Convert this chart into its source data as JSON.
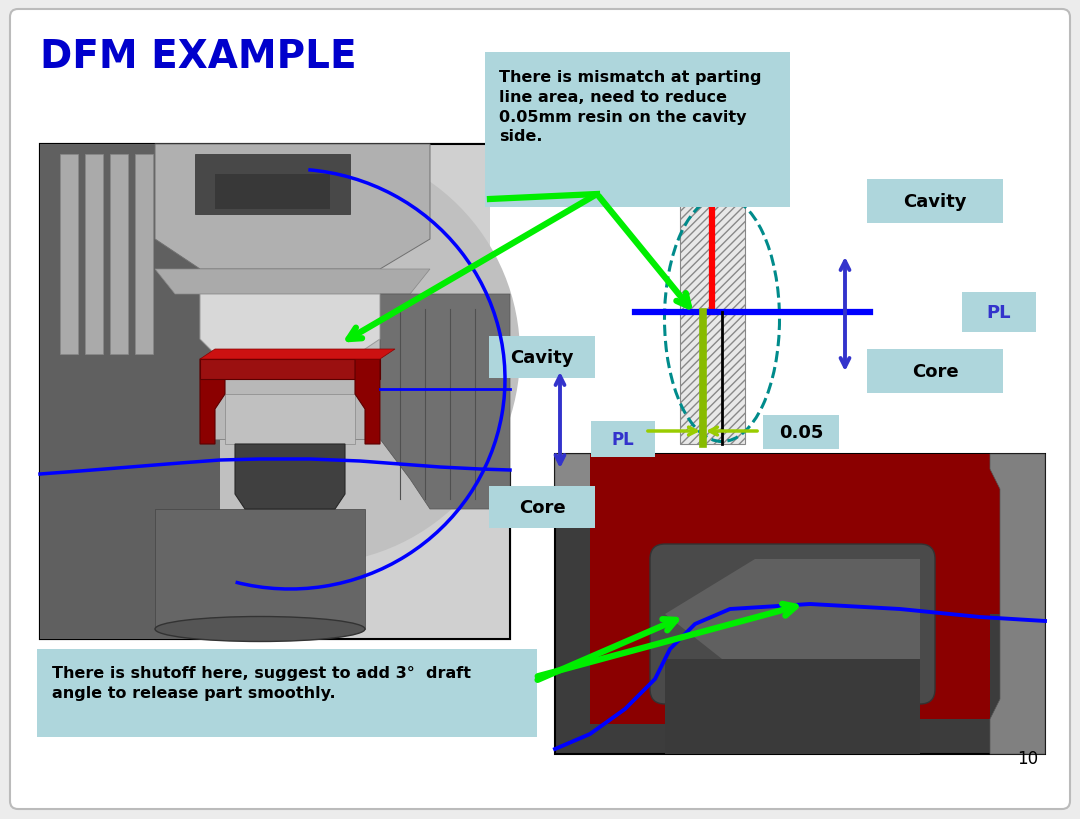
{
  "title": "DFM EXAMPLE",
  "title_color": "#0000CC",
  "title_fontsize": 28,
  "bg_color": "#ececec",
  "panel_bg": "#ffffff",
  "callout_bg": "#aed6dc",
  "callout_text1": "There is mismatch at parting\nline area, need to reduce\n0.05mm resin on the cavity\nside.",
  "callout_text2": "There is shutoff here, suggest to add 3°  draft\nangle to release part smoothly.",
  "label_cavity": "Cavity",
  "label_core": "Core",
  "label_pl": "PL",
  "label_005": "0.05",
  "page_number": "10",
  "green": "#00ee00",
  "blue_arrow": "#3333cc",
  "red_line": "#ff0000",
  "olive_line": "#99cc00",
  "teal_ellipse": "#008B8B"
}
